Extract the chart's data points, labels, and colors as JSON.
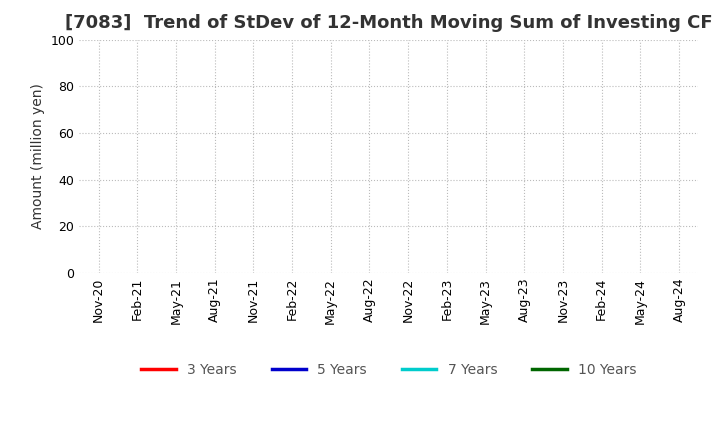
{
  "title": "[7083]  Trend of StDev of 12-Month Moving Sum of Investing CF",
  "ylabel": "Amount (million yen)",
  "ylim": [
    0,
    100
  ],
  "yticks": [
    0,
    20,
    40,
    60,
    80,
    100
  ],
  "x_labels": [
    "Nov-20",
    "Feb-21",
    "May-21",
    "Aug-21",
    "Nov-21",
    "Feb-22",
    "May-22",
    "Aug-22",
    "Nov-22",
    "Feb-23",
    "May-23",
    "Aug-23",
    "Nov-23",
    "Feb-24",
    "May-24",
    "Aug-24"
  ],
  "background_color": "#ffffff",
  "plot_bg_color": "#ffffff",
  "grid_color": "#bbbbbb",
  "legend_entries": [
    {
      "label": "3 Years",
      "color": "#ff0000"
    },
    {
      "label": "5 Years",
      "color": "#0000cc"
    },
    {
      "label": "7 Years",
      "color": "#00cccc"
    },
    {
      "label": "10 Years",
      "color": "#006600"
    }
  ],
  "title_fontsize": 13,
  "axis_label_fontsize": 10,
  "tick_fontsize": 9,
  "legend_fontsize": 10
}
